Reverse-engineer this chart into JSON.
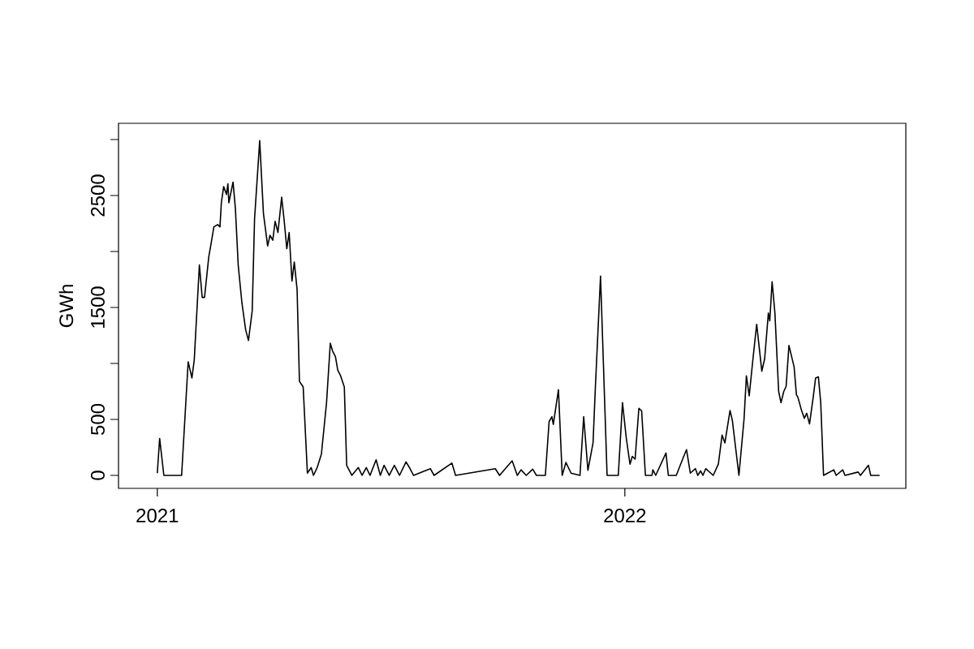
{
  "chart_data": {
    "type": "line",
    "ylabel": "GWh",
    "color": "#000000",
    "x": [
      2021.0,
      2021.005,
      2021.014,
      2021.052,
      2021.066,
      2021.074,
      2021.079,
      2021.09,
      2021.096,
      2021.101,
      2021.11,
      2021.115,
      2021.121,
      2021.129,
      2021.134,
      2021.137,
      2021.142,
      2021.148,
      2021.151,
      2021.153,
      2021.162,
      2021.167,
      2021.173,
      2021.181,
      2021.189,
      2021.195,
      2021.203,
      2021.208,
      2021.219,
      2021.227,
      2021.236,
      2021.241,
      2021.247,
      2021.252,
      2021.258,
      2021.266,
      2021.271,
      2021.277,
      2021.282,
      2021.288,
      2021.293,
      2021.299,
      2021.304,
      2021.312,
      2021.321,
      2021.329,
      2021.334,
      2021.342,
      2021.351,
      2021.362,
      2021.37,
      2021.375,
      2021.381,
      2021.386,
      2021.392,
      2021.4,
      2021.405,
      2021.416,
      2021.43,
      2021.438,
      2021.447,
      2021.455,
      2021.468,
      2021.477,
      2021.485,
      2021.496,
      2021.507,
      2021.518,
      2021.532,
      2021.54,
      2021.548,
      2021.584,
      2021.592,
      2021.63,
      2021.638,
      2021.723,
      2021.732,
      2021.759,
      2021.77,
      2021.778,
      2021.789,
      2021.803,
      2021.811,
      2021.83,
      2021.838,
      2021.844,
      2021.847,
      2021.858,
      2021.866,
      2021.874,
      2021.885,
      2021.904,
      2021.912,
      2021.921,
      2021.932,
      2021.937,
      2021.948,
      2021.962,
      2021.986,
      2021.995,
      2022.003,
      2022.011,
      2022.016,
      2022.022,
      2022.03,
      2022.036,
      2022.044,
      2022.058,
      2022.06,
      2022.066,
      2022.088,
      2022.093,
      2022.11,
      2022.126,
      2022.132,
      2022.14,
      2022.151,
      2022.156,
      2022.162,
      2022.167,
      2022.173,
      2022.189,
      2022.2,
      2022.208,
      2022.214,
      2022.225,
      2022.23,
      2022.244,
      2022.255,
      2022.26,
      2022.266,
      2022.274,
      2022.282,
      2022.288,
      2022.293,
      2022.299,
      2022.307,
      2022.31,
      2022.315,
      2022.321,
      2022.329,
      2022.334,
      2022.34,
      2022.345,
      2022.351,
      2022.362,
      2022.367,
      2022.37,
      2022.378,
      2022.384,
      2022.389,
      2022.395,
      2022.403,
      2022.408,
      2022.414,
      2022.419,
      2022.425,
      2022.447,
      2022.452,
      2022.466,
      2022.471,
      2022.499,
      2022.504,
      2022.521,
      2022.526,
      2022.545
    ],
    "values": [
      20,
      330,
      0,
      0,
      1015,
      870,
      1030,
      1880,
      1590,
      1590,
      1950,
      2070,
      2220,
      2240,
      2220,
      2435,
      2580,
      2510,
      2605,
      2435,
      2620,
      2385,
      1880,
      1540,
      1300,
      1205,
      1470,
      2290,
      2990,
      2340,
      2050,
      2145,
      2100,
      2270,
      2170,
      2485,
      2290,
      2025,
      2170,
      1735,
      1905,
      1660,
      840,
      790,
      20,
      70,
      0,
      70,
      190,
      650,
      1180,
      1110,
      1060,
      940,
      890,
      790,
      90,
      0,
      70,
      0,
      70,
      0,
      140,
      0,
      90,
      0,
      90,
      0,
      120,
      65,
      0,
      60,
      0,
      110,
      0,
      60,
      0,
      130,
      0,
      50,
      0,
      55,
      0,
      0,
      480,
      525,
      455,
      765,
      0,
      115,
      20,
      0,
      525,
      45,
      290,
      790,
      1780,
      0,
      0,
      650,
      335,
      100,
      170,
      145,
      600,
      575,
      0,
      0,
      50,
      0,
      200,
      0,
      0,
      170,
      230,
      20,
      60,
      0,
      40,
      0,
      60,
      0,
      100,
      360,
      290,
      580,
      490,
      0,
      505,
      890,
      710,
      1040,
      1350,
      1120,
      930,
      1040,
      1450,
      1380,
      1730,
      1450,
      750,
      650,
      750,
      795,
      1160,
      970,
      720,
      700,
      580,
      510,
      555,
      460,
      700,
      870,
      880,
      650,
      0,
      50,
      0,
      50,
      0,
      30,
      0,
      90,
      0,
      0
    ],
    "xlim": [
      2020.917,
      2022.601
    ],
    "xticks": [
      2021,
      2022
    ],
    "ylim": [
      -116,
      3145
    ],
    "yticks": [
      0,
      500,
      {
        "value": 1000,
        "label": null
      },
      1500,
      {
        "value": 2000,
        "label": null
      },
      2500,
      {
        "value": 3000,
        "label": null
      }
    ]
  }
}
